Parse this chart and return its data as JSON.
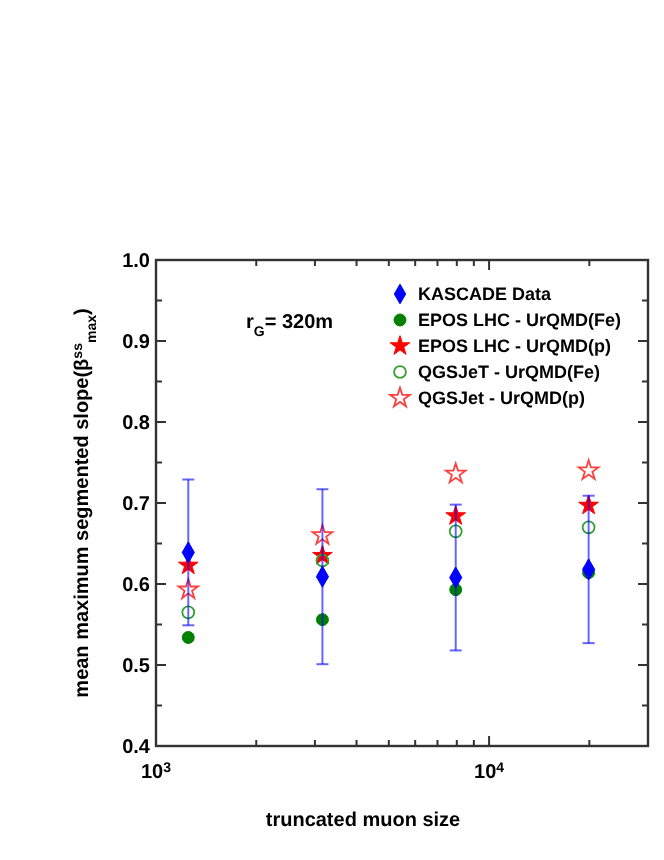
{
  "chart_data": {
    "type": "scatter",
    "xlabel": "truncated muon size",
    "ylabel": "mean maximum segmented slope(β$^{ss}$$_{max}$)",
    "annotations": [
      "r$_{G}$= 320m"
    ],
    "log": "x",
    "legend": "top right",
    "x": [
      1250,
      3160,
      7940,
      19900
    ],
    "xlim": [
      1000,
      30000
    ],
    "xticks": [
      {
        "value": 1000,
        "label": "10$^{3}$"
      },
      {
        "value": 2000,
        "label": null
      },
      {
        "value": 3000,
        "label": null
      },
      {
        "value": 4000,
        "label": null
      },
      {
        "value": 5000,
        "label": null
      },
      {
        "value": 6000,
        "label": null
      },
      {
        "value": 7000,
        "label": null
      },
      {
        "value": 8000,
        "label": null
      },
      {
        "value": 9000,
        "label": null
      },
      {
        "value": 10000,
        "label": "10$^{4}$"
      },
      {
        "value": 20000,
        "label": null
      },
      {
        "value": 30000,
        "label": null
      }
    ],
    "ylim": [
      0.4,
      1.0
    ],
    "yticks": [
      {
        "value": 0.4,
        "label": "0.4"
      },
      {
        "value": 0.45,
        "label": null
      },
      {
        "value": 0.5,
        "label": "0.5"
      },
      {
        "value": 0.55,
        "label": null
      },
      {
        "value": 0.6,
        "label": "0.6"
      },
      {
        "value": 0.65,
        "label": null
      },
      {
        "value": 0.7,
        "label": "0.7"
      },
      {
        "value": 0.75,
        "label": null
      },
      {
        "value": 0.8,
        "label": "0.8"
      },
      {
        "value": 0.85,
        "label": null
      },
      {
        "value": 0.9,
        "label": "0.9"
      },
      {
        "value": 0.95,
        "label": null
      },
      {
        "value": 1.0,
        "label": "1.0"
      }
    ],
    "series": [
      {
        "name": "KASCADE Data",
        "color": "#0000ff",
        "marker": "diamond",
        "values": [
          0.639,
          0.609,
          0.608,
          0.618
        ],
        "errors": [
          0.09,
          0.108,
          0.09,
          0.091
        ]
      },
      {
        "name": "EPOS LHC - UrQMD(Fe)",
        "color": "#008000",
        "marker": "circle",
        "values": [
          0.534,
          0.556,
          0.593,
          0.614
        ]
      },
      {
        "name": "EPOS LHC - UrQMD(p)",
        "color": "#ff0000",
        "marker": "star",
        "values": [
          0.623,
          0.635,
          0.684,
          0.697
        ]
      },
      {
        "name": "QGSJeT - UrQMD(Fe)",
        "color": "#33a033",
        "marker": "circle-open",
        "values": [
          0.565,
          0.629,
          0.665,
          0.67
        ]
      },
      {
        "name": "QGSJet - UrQMD(p)",
        "color": "#ff4040",
        "marker": "star-open",
        "values": [
          0.593,
          0.66,
          0.736,
          0.74
        ]
      }
    ]
  }
}
